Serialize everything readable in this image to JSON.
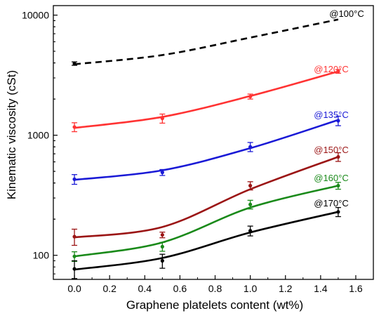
{
  "chart_data": {
    "type": "line",
    "xlabel": "Graphene platelets content (wt%)",
    "ylabel": "Kinematic viscosity (cSt)",
    "xlim": [
      -0.12,
      1.7
    ],
    "ylim": [
      63,
      12000
    ],
    "yscale": "log",
    "x_ticks": [
      0.0,
      0.2,
      0.4,
      0.6,
      0.8,
      1.0,
      1.2,
      1.4,
      1.6
    ],
    "x_tick_labels": [
      "0.0",
      "0.2",
      "0.4",
      "0.6",
      "0.8",
      "1.0",
      "1.2",
      "1.4",
      "1.6"
    ],
    "y_ticks": [
      100,
      1000,
      10000
    ],
    "y_tick_labels": [
      "100",
      "1000",
      "10000"
    ],
    "grid": false,
    "series": [
      {
        "name": "@100°C",
        "color": "#000000",
        "line_style": "dashed",
        "x": [
          0.0,
          0.5,
          1.0,
          1.5
        ],
        "points": [
          3950,
          null,
          null,
          null
        ],
        "errors": [
          130,
          null,
          null,
          null
        ],
        "fit": [
          3900,
          4650,
          6500,
          9200
        ]
      },
      {
        "name": "@120°C",
        "color": "#ff3333",
        "line_style": "solid",
        "x": [
          0.0,
          0.5,
          1.0,
          1.5
        ],
        "points": [
          1170,
          1380,
          2100,
          3400
        ],
        "errors": [
          100,
          120,
          100,
          120
        ],
        "fit": [
          1150,
          1420,
          2120,
          3400
        ]
      },
      {
        "name": "@135°C",
        "color": "#1a1ad6",
        "line_style": "solid",
        "x": [
          0.0,
          0.5,
          1.0,
          1.5
        ],
        "points": [
          430,
          490,
          800,
          1320
        ],
        "errors": [
          40,
          28,
          70,
          120
        ],
        "fit": [
          425,
          510,
          780,
          1340
        ]
      },
      {
        "name": "@150°C",
        "color": "#9b1515",
        "line_style": "solid",
        "x": [
          0.0,
          0.5,
          1.0,
          1.5
        ],
        "points": [
          143,
          148,
          380,
          660
        ],
        "errors": [
          22,
          8,
          30,
          55
        ],
        "fit": [
          141,
          172,
          355,
          660
        ]
      },
      {
        "name": "@160°C",
        "color": "#1a8a1a",
        "line_style": "solid",
        "x": [
          0.0,
          0.5,
          1.0,
          1.5
        ],
        "points": [
          98,
          118,
          265,
          380
        ],
        "errors": [
          9,
          10,
          22,
          25
        ],
        "fit": [
          98,
          128,
          250,
          380
        ]
      },
      {
        "name": "@170°C",
        "color": "#000000",
        "line_style": "solid",
        "x": [
          0.0,
          0.5,
          1.0,
          1.5
        ],
        "points": [
          77,
          90,
          160,
          230
        ],
        "errors": [
          13,
          12,
          15,
          20
        ],
        "fit": [
          76,
          95,
          155,
          230
        ]
      }
    ]
  }
}
